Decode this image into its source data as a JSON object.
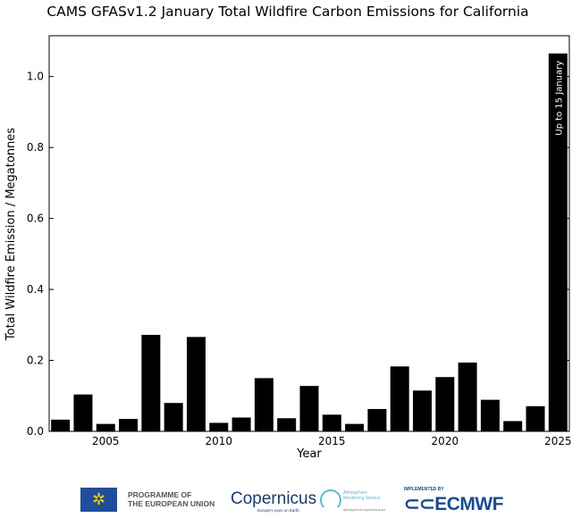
{
  "chart_data": {
    "type": "bar",
    "title": "CAMS GFASv1.2 January Total Wildfire Carbon Emissions for California",
    "xlabel": "Year",
    "ylabel": "Total Wildfire Emission / Megatonnes",
    "categories": [
      2003,
      2004,
      2005,
      2006,
      2007,
      2008,
      2009,
      2010,
      2011,
      2012,
      2013,
      2014,
      2015,
      2016,
      2017,
      2018,
      2019,
      2020,
      2021,
      2022,
      2023,
      2024,
      2025
    ],
    "values": [
      0.033,
      0.104,
      0.021,
      0.035,
      0.272,
      0.08,
      0.266,
      0.024,
      0.039,
      0.15,
      0.037,
      0.128,
      0.047,
      0.021,
      0.063,
      0.183,
      0.115,
      0.153,
      0.194,
      0.089,
      0.029,
      0.071,
      1.065
    ],
    "xlim": [
      2002.5,
      2025.5
    ],
    "ylim": [
      0,
      1.115
    ],
    "xticks": [
      2005,
      2010,
      2015,
      2020,
      2025
    ],
    "yticks": [
      "0.0",
      "0.2",
      "0.4",
      "0.6",
      "0.8",
      "1.0"
    ],
    "bar_color": "#000000",
    "grid": false,
    "annotation": "Up to 15 January"
  },
  "logos": {
    "eu_line1": "PROGRAMME OF",
    "eu_line2": "THE EUROPEAN UNION",
    "copernicus": "opernicus",
    "copernicus_tagline": "Europe's eyes on Earth",
    "ams_line1": "Atmosphere",
    "ams_line2": "Monitoring Service",
    "ams_url": "atmosphere.copernicus.eu",
    "ecmwf_impl": "IMPLEMENTED BY",
    "ecmwf": "ECMWF"
  }
}
